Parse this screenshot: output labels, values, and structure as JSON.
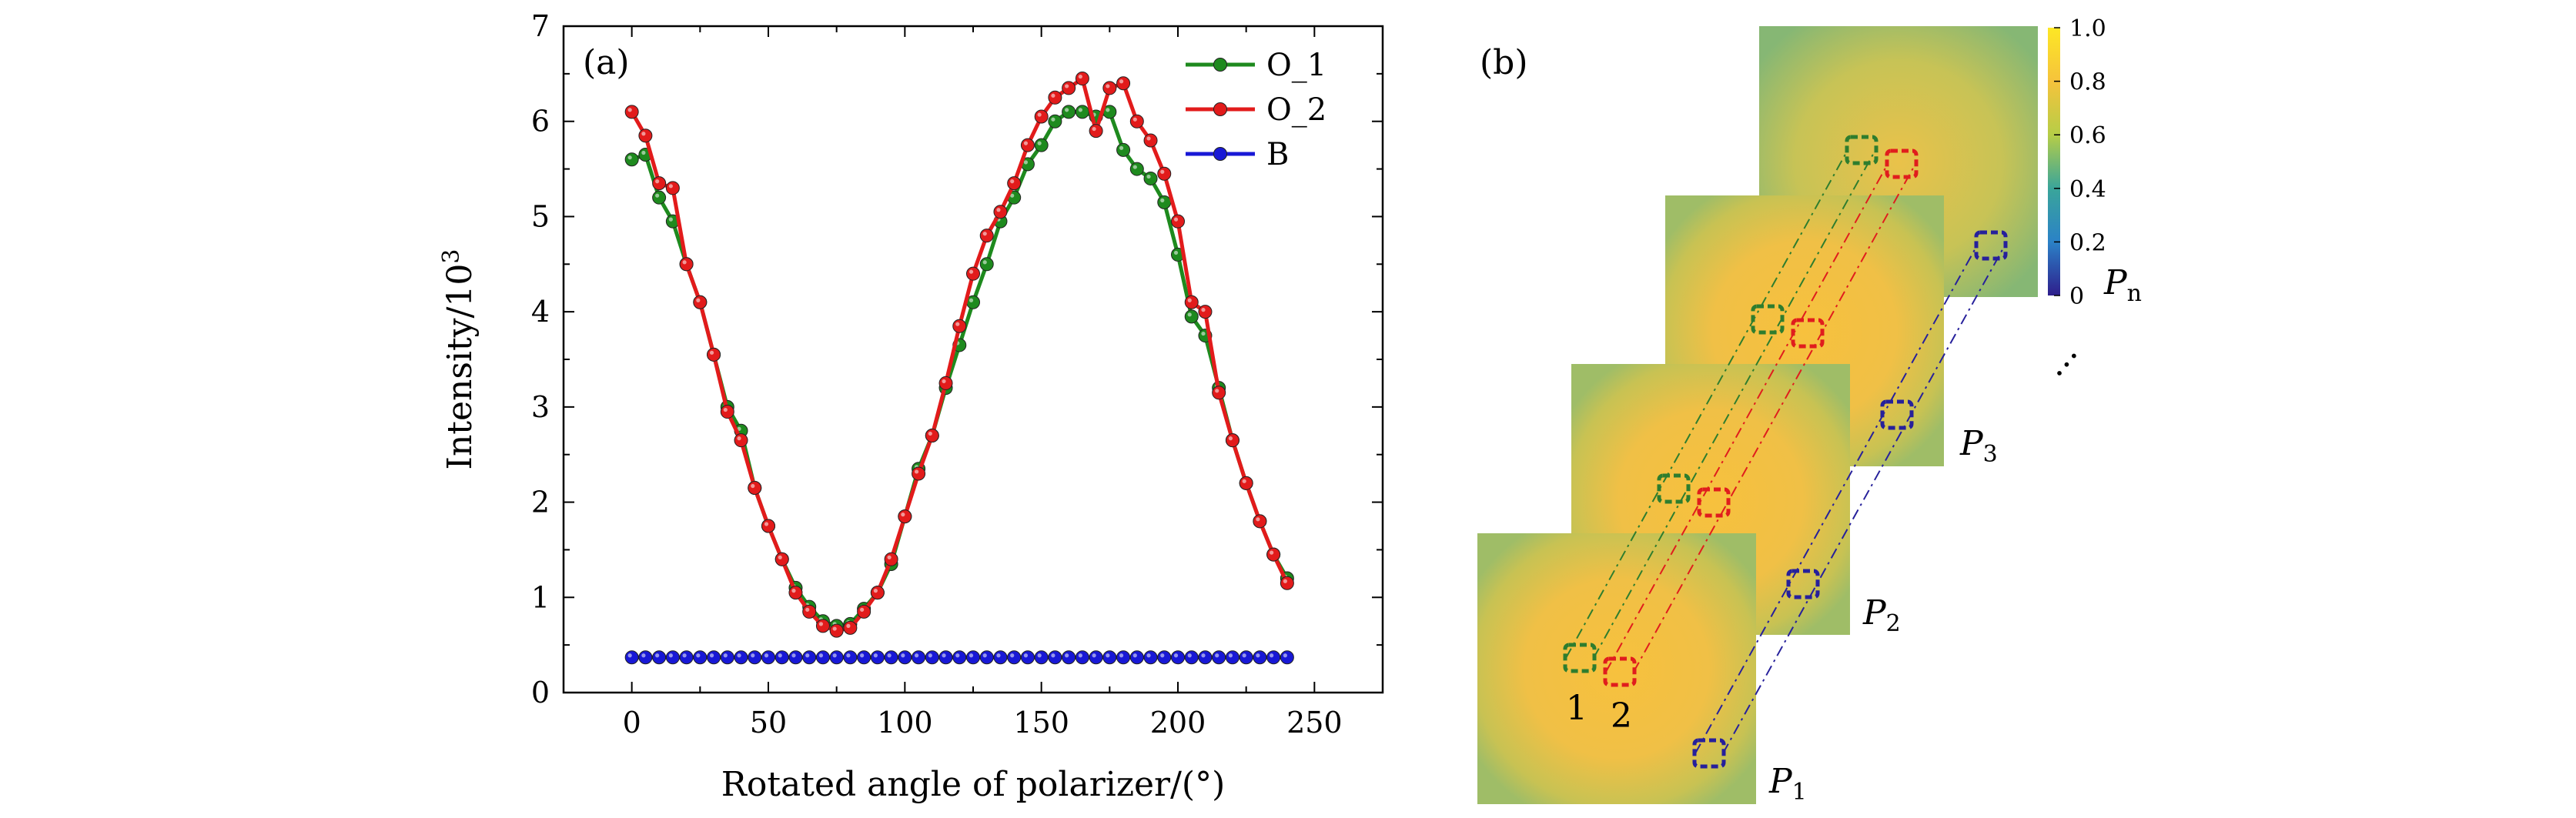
{
  "panel_a": {
    "label": "(a)",
    "chart_data": {
      "type": "line",
      "xlabel": "Rotated angle of polarizer/(°)",
      "ylabel": "Intensity/10³",
      "xlim": [
        -25,
        275
      ],
      "ylim": [
        0,
        7
      ],
      "xticks": [
        0,
        50,
        100,
        150,
        200,
        250
      ],
      "yticks": [
        0,
        1,
        2,
        3,
        4,
        5,
        6,
        7
      ],
      "grid": false,
      "legend_position": "top-right",
      "x": [
        0,
        5,
        10,
        15,
        20,
        25,
        30,
        35,
        40,
        45,
        50,
        55,
        60,
        65,
        70,
        75,
        80,
        85,
        90,
        95,
        100,
        105,
        110,
        115,
        120,
        125,
        130,
        135,
        140,
        145,
        150,
        155,
        160,
        165,
        170,
        175,
        180,
        185,
        190,
        195,
        200,
        205,
        210,
        215,
        220,
        225,
        230,
        235,
        240
      ],
      "series": [
        {
          "name": "O_1",
          "color": "#1e8a1e",
          "values": [
            5.6,
            5.65,
            5.2,
            4.95,
            4.5,
            4.1,
            3.55,
            3.0,
            2.75,
            2.15,
            1.75,
            1.4,
            1.1,
            0.9,
            0.75,
            0.7,
            0.72,
            0.88,
            1.05,
            1.35,
            1.85,
            2.35,
            2.7,
            3.2,
            3.65,
            4.1,
            4.5,
            4.95,
            5.2,
            5.55,
            5.75,
            6.0,
            6.1,
            6.1,
            6.05,
            6.1,
            5.7,
            5.5,
            5.4,
            5.15,
            4.6,
            3.95,
            3.75,
            3.2,
            2.65,
            2.2,
            1.8,
            1.45,
            1.2
          ]
        },
        {
          "name": "O_2",
          "color": "#e21b1b",
          "values": [
            6.1,
            5.85,
            5.35,
            5.3,
            4.5,
            4.1,
            3.55,
            2.95,
            2.65,
            2.15,
            1.75,
            1.4,
            1.05,
            0.85,
            0.7,
            0.65,
            0.68,
            0.85,
            1.05,
            1.4,
            1.85,
            2.3,
            2.7,
            3.25,
            3.85,
            4.4,
            4.8,
            5.05,
            5.35,
            5.75,
            6.05,
            6.25,
            6.35,
            6.45,
            5.9,
            6.35,
            6.4,
            6.0,
            5.8,
            5.45,
            4.95,
            4.1,
            4.0,
            3.15,
            2.65,
            2.2,
            1.8,
            1.45,
            1.15
          ]
        },
        {
          "name": "B",
          "color": "#1818d6",
          "values": [
            0.37,
            0.37,
            0.37,
            0.37,
            0.37,
            0.37,
            0.37,
            0.37,
            0.37,
            0.37,
            0.37,
            0.37,
            0.37,
            0.37,
            0.37,
            0.37,
            0.37,
            0.37,
            0.37,
            0.37,
            0.37,
            0.37,
            0.37,
            0.37,
            0.37,
            0.37,
            0.37,
            0.37,
            0.37,
            0.37,
            0.37,
            0.37,
            0.37,
            0.37,
            0.37,
            0.37,
            0.37,
            0.37,
            0.37,
            0.37,
            0.37,
            0.37,
            0.37,
            0.37,
            0.37,
            0.37,
            0.37,
            0.37,
            0.37
          ]
        }
      ]
    }
  },
  "panel_b": {
    "label": "(b)",
    "colorbar": {
      "ticks": [
        "1.0",
        "0.8",
        "0.6",
        "0.4",
        "0.2",
        "0"
      ],
      "colors": [
        "#fde725",
        "#f5c33c",
        "#b6cd47",
        "#3aa59a",
        "#2b82c7",
        "#2e1e8c"
      ]
    },
    "images": [
      {
        "base": "P",
        "sub": "1"
      },
      {
        "base": "P",
        "sub": "2"
      },
      {
        "base": "P",
        "sub": "3"
      },
      {
        "base": "P",
        "sub": "n"
      }
    ],
    "region_labels": [
      "1",
      "2"
    ],
    "ellipsis": "…",
    "roi_colors": {
      "o1": "#2e7d2e",
      "o2": "#e01d1d",
      "b": "#26209b"
    }
  }
}
